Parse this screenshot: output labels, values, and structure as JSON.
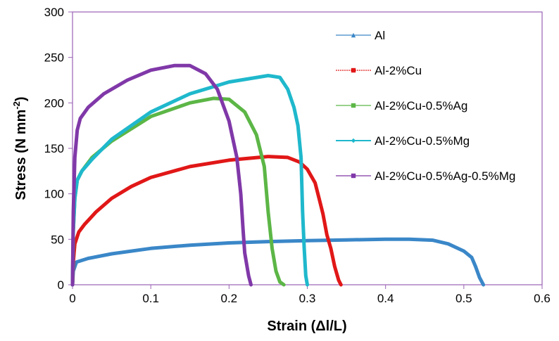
{
  "chart_data": {
    "type": "line",
    "title": "",
    "xlabel": "Strain (Δl/L)",
    "ylabel_main": "Stress (N mm",
    "ylabel_sup": "-2",
    "ylabel_close": ")",
    "xlim": [
      0,
      0.6
    ],
    "ylim": [
      0,
      300
    ],
    "xticks": [
      0,
      0.1,
      0.2,
      0.3,
      0.4,
      0.5,
      0.6
    ],
    "xtick_labels": [
      "0",
      "0.1",
      "0.2",
      "0.3",
      "0.4",
      "0.5",
      "0.6"
    ],
    "yticks": [
      0,
      50,
      100,
      150,
      200,
      250,
      300
    ],
    "ytick_labels": [
      "0",
      "50",
      "100",
      "150",
      "200",
      "250",
      "300"
    ],
    "grid": false,
    "legend_position": "right",
    "series": [
      {
        "name": "Al",
        "color": "#3a87c8",
        "marker": "triangle",
        "x": [
          0,
          0.001,
          0.005,
          0.02,
          0.05,
          0.1,
          0.15,
          0.2,
          0.25,
          0.3,
          0.35,
          0.4,
          0.43,
          0.46,
          0.48,
          0.5,
          0.51,
          0.515,
          0.52,
          0.525
        ],
        "y": [
          0,
          15,
          25,
          29,
          34,
          40,
          43.5,
          46,
          47.5,
          48.5,
          49.3,
          50,
          50,
          49,
          45,
          37,
          30,
          20,
          8,
          0
        ]
      },
      {
        "name": "Al-2%Cu",
        "color": "#e11717",
        "marker": "square",
        "x": [
          0,
          0.001,
          0.003,
          0.008,
          0.015,
          0.03,
          0.05,
          0.075,
          0.1,
          0.15,
          0.2,
          0.25,
          0.275,
          0.29,
          0.3,
          0.31,
          0.315,
          0.32,
          0.325,
          0.33,
          0.335,
          0.34,
          0.343
        ],
        "y": [
          0,
          25,
          45,
          58,
          66,
          80,
          95,
          108,
          118,
          130,
          137,
          141,
          140,
          135,
          127,
          112,
          95,
          78,
          55,
          40,
          20,
          5,
          0
        ]
      },
      {
        "name": "Al-2%Cu-0.5%Ag",
        "color": "#5cb646",
        "marker": "square",
        "x": [
          0,
          0.001,
          0.003,
          0.006,
          0.012,
          0.025,
          0.05,
          0.1,
          0.15,
          0.18,
          0.2,
          0.22,
          0.235,
          0.245,
          0.25,
          0.255,
          0.26,
          0.265,
          0.27
        ],
        "y": [
          0,
          60,
          95,
          115,
          125,
          140,
          158,
          185,
          200,
          205,
          204,
          190,
          165,
          130,
          80,
          40,
          15,
          3,
          0
        ]
      },
      {
        "name": "Al-2%Cu-0.5%Mg",
        "color": "#1fb8cc",
        "marker": "diamond",
        "x": [
          0,
          0.001,
          0.003,
          0.006,
          0.012,
          0.025,
          0.05,
          0.1,
          0.15,
          0.2,
          0.25,
          0.265,
          0.275,
          0.283,
          0.288,
          0.292,
          0.294,
          0.296,
          0.298,
          0.3
        ],
        "y": [
          0,
          60,
          95,
          115,
          125,
          138,
          160,
          190,
          210,
          223,
          230,
          228,
          215,
          195,
          175,
          140,
          80,
          40,
          10,
          0
        ]
      },
      {
        "name": "Al-2%Cu-0.5%Ag-0.5%Mg",
        "color": "#8038a8",
        "marker": "square",
        "x": [
          0,
          0.001,
          0.003,
          0.006,
          0.01,
          0.02,
          0.04,
          0.07,
          0.1,
          0.13,
          0.15,
          0.17,
          0.185,
          0.2,
          0.21,
          0.215,
          0.218,
          0.22,
          0.225,
          0.228
        ],
        "y": [
          0,
          80,
          140,
          170,
          183,
          195,
          210,
          225,
          236,
          241,
          241,
          232,
          215,
          180,
          140,
          100,
          60,
          35,
          10,
          0
        ]
      }
    ]
  }
}
